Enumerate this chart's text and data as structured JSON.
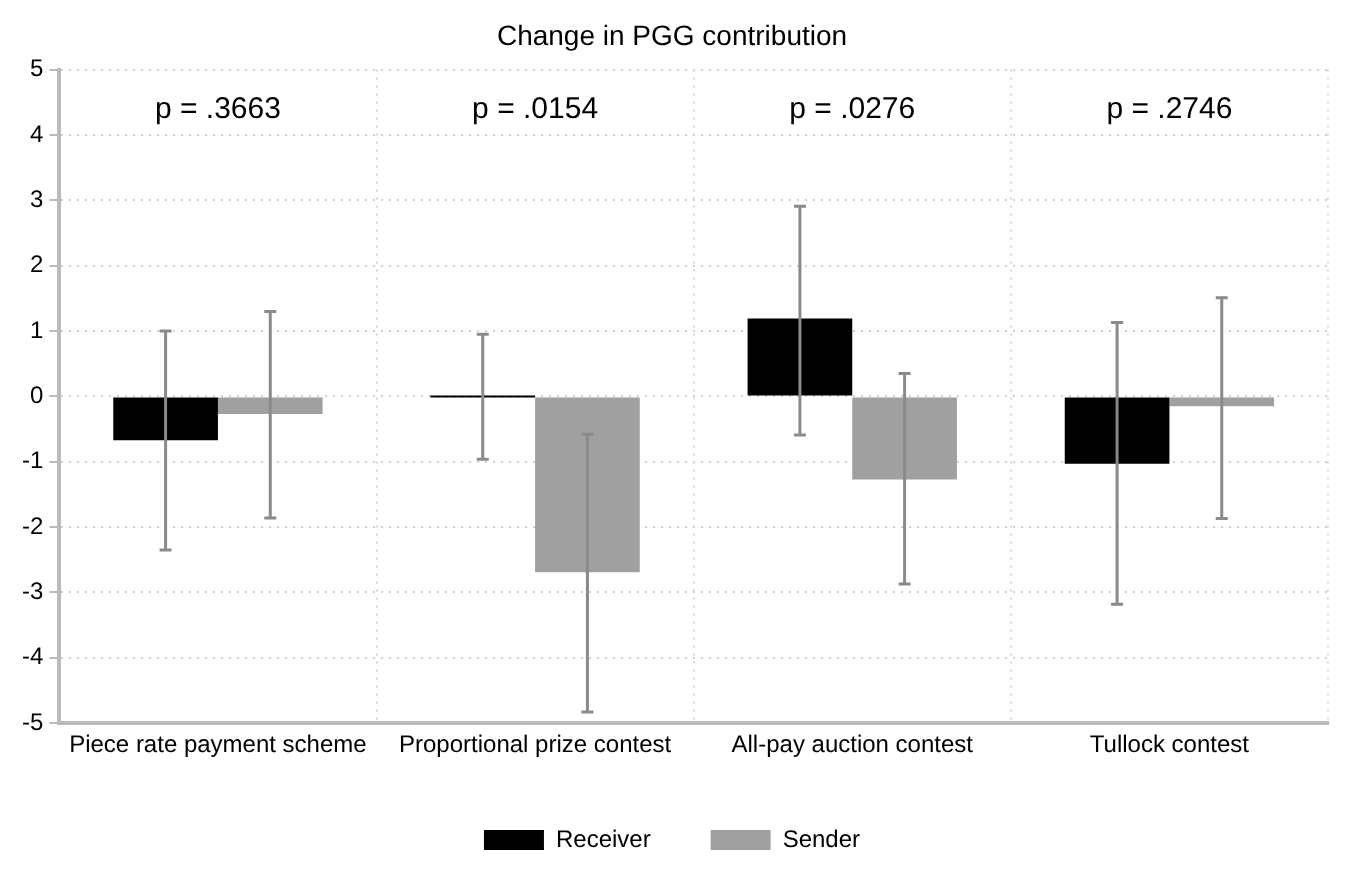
{
  "chart_data": {
    "type": "bar",
    "title": "Change in PGG contribution",
    "categories": [
      "Piece rate payment scheme",
      "Proportional prize contest",
      "All-pay auction contest",
      "Tullock contest"
    ],
    "series": [
      {
        "name": "Receiver",
        "color": "#000000",
        "values": [
          -0.67,
          0,
          1.19,
          -1.03
        ],
        "errors": [
          [
            -2.35,
            1.0
          ],
          [
            -0.96,
            0.95
          ],
          [
            -0.59,
            2.91
          ],
          [
            -3.18,
            1.13
          ]
        ]
      },
      {
        "name": "Sender",
        "color": "#a0a0a0",
        "values": [
          -0.27,
          -2.69,
          -1.27,
          -0.15
        ],
        "errors": [
          [
            -1.86,
            1.3
          ],
          [
            -4.83,
            -0.58
          ],
          [
            -2.87,
            0.35
          ],
          [
            -1.87,
            1.51
          ]
        ]
      }
    ],
    "ylim": [
      -5,
      5
    ],
    "yticks": [
      -5,
      -4,
      -3,
      -2,
      -1,
      0,
      1,
      2,
      3,
      4,
      5
    ],
    "annotations": [
      "p = .3663",
      "p = .0154",
      "p = .0276",
      "p = .2746"
    ],
    "grid": true,
    "legend": "bottom"
  }
}
